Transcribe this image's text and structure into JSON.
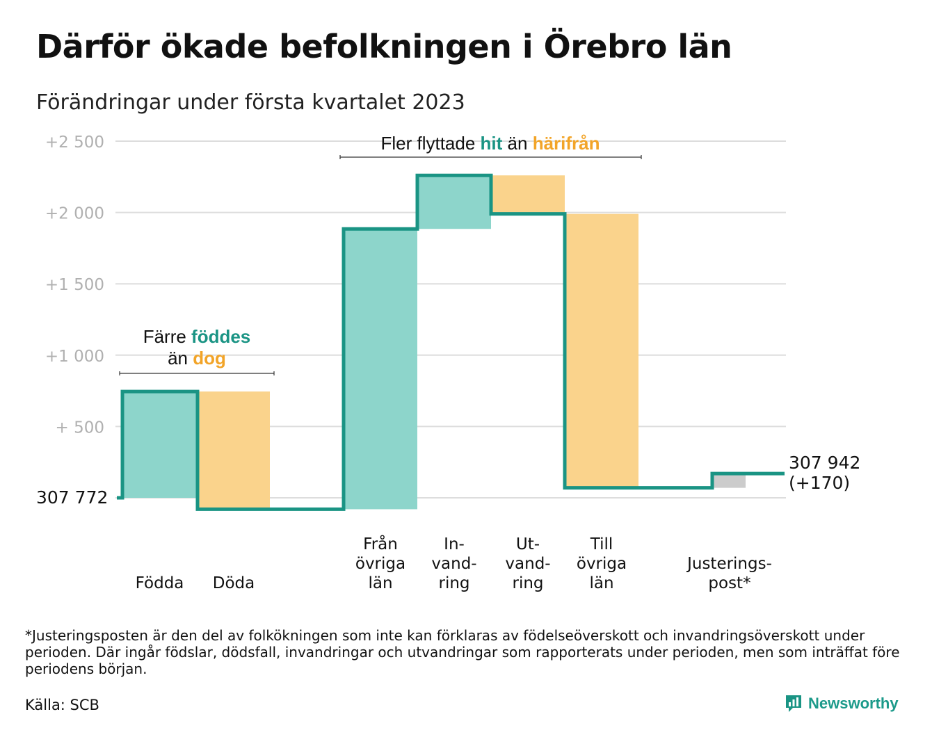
{
  "title": "Därför ökade befolkningen i Örebro län",
  "subtitle": "Förändringar under första kvartalet 2023",
  "footnote": "*Justeringsposten är den del av folkökningen som inte kan förklaras av födelseöverskott och invandringsöverskott under perioden. Där ingår födslar, dödsfall, invandringar och utvandringar som rapporterats under perioden, men som inträffat före periodens början.",
  "source": "Källa: SCB",
  "brand": {
    "name": "Newsworthy",
    "icon": "newsworthy-logo-icon"
  },
  "colors": {
    "increase": "#8dd5cb",
    "decrease": "#fad38c",
    "adjustment": "#cccccc",
    "line": "#1a9484",
    "teal_text": "#1a9484",
    "orange_text": "#f2a428",
    "grid": "#dddddd",
    "tick": "#b0b0b0"
  },
  "chart_data": {
    "type": "waterfall",
    "start_label": "307 772",
    "end_label_lines": [
      "307 942",
      "(+170)"
    ],
    "ylim": [
      -100,
      2500
    ],
    "yticks": [
      {
        "value": 500,
        "label": "+ 500"
      },
      {
        "value": 1000,
        "label": "+1 000"
      },
      {
        "value": 1500,
        "label": "+1 500"
      },
      {
        "value": 2000,
        "label": "+2 000"
      },
      {
        "value": 2500,
        "label": "+2 500"
      }
    ],
    "categories": [
      {
        "label": [
          "Födda"
        ],
        "change": 745,
        "kind": "increase"
      },
      {
        "label": [
          "Döda"
        ],
        "change": -825,
        "kind": "decrease"
      },
      {
        "label": [
          "Från",
          "övriga",
          "län"
        ],
        "change": 1965,
        "kind": "increase"
      },
      {
        "label": [
          "In-",
          "vand-",
          "ring"
        ],
        "change": 375,
        "kind": "increase"
      },
      {
        "label": [
          "Ut-",
          "vand-",
          "ring"
        ],
        "change": -270,
        "kind": "decrease"
      },
      {
        "label": [
          "Till",
          "övriga",
          "län"
        ],
        "change": -1920,
        "kind": "decrease"
      },
      {
        "label": [
          "Justerings-",
          "post*"
        ],
        "change": 100,
        "kind": "adjustment"
      }
    ],
    "end_value": 170,
    "annotations": [
      {
        "parts": [
          {
            "text": "Färre ",
            "color": "plain"
          },
          {
            "text": "föddes",
            "color": "teal"
          }
        ],
        "parts2": [
          {
            "text": "än ",
            "color": "plain"
          },
          {
            "text": "dog",
            "color": "orange"
          }
        ],
        "span": [
          0,
          1
        ]
      },
      {
        "parts": [
          {
            "text": "Fler flyttade ",
            "color": "plain"
          },
          {
            "text": "hit",
            "color": "teal"
          },
          {
            "text": " än ",
            "color": "plain"
          },
          {
            "text": "härifrån",
            "color": "orange"
          }
        ],
        "span": [
          2,
          5
        ]
      }
    ]
  }
}
